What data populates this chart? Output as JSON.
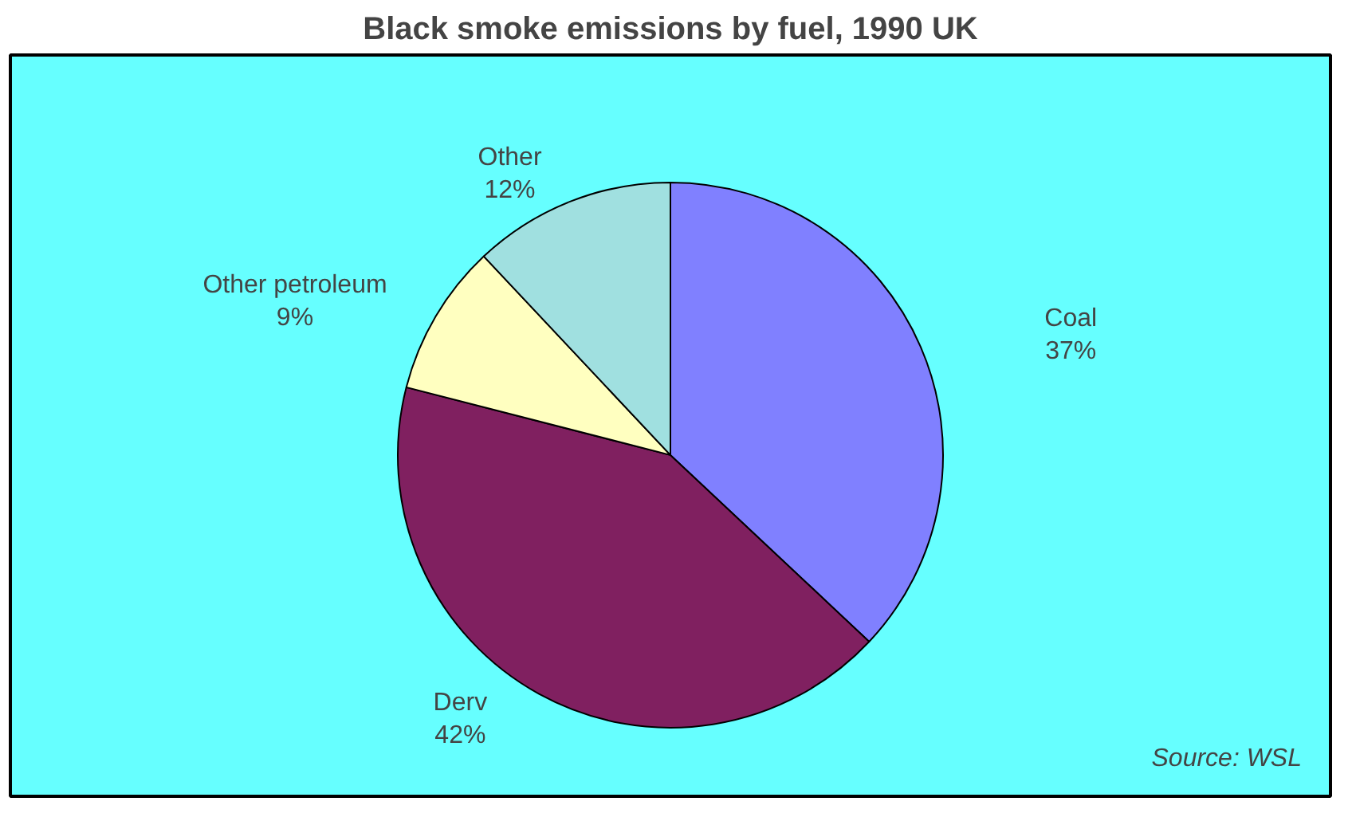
{
  "chart_data": {
    "type": "pie",
    "title": "Black smoke emissions by fuel, 1990 UK",
    "categories": [
      "Coal",
      "Derv",
      "Other petroleum",
      "Other"
    ],
    "values": [
      37,
      42,
      9,
      12
    ],
    "colors": [
      "#8080ff",
      "#802060",
      "#ffffc0",
      "#a0e0e0"
    ],
    "value_labels": [
      "37%",
      "42%",
      "9%",
      "12%"
    ],
    "annotations": [
      "Source: WSL"
    ]
  }
}
